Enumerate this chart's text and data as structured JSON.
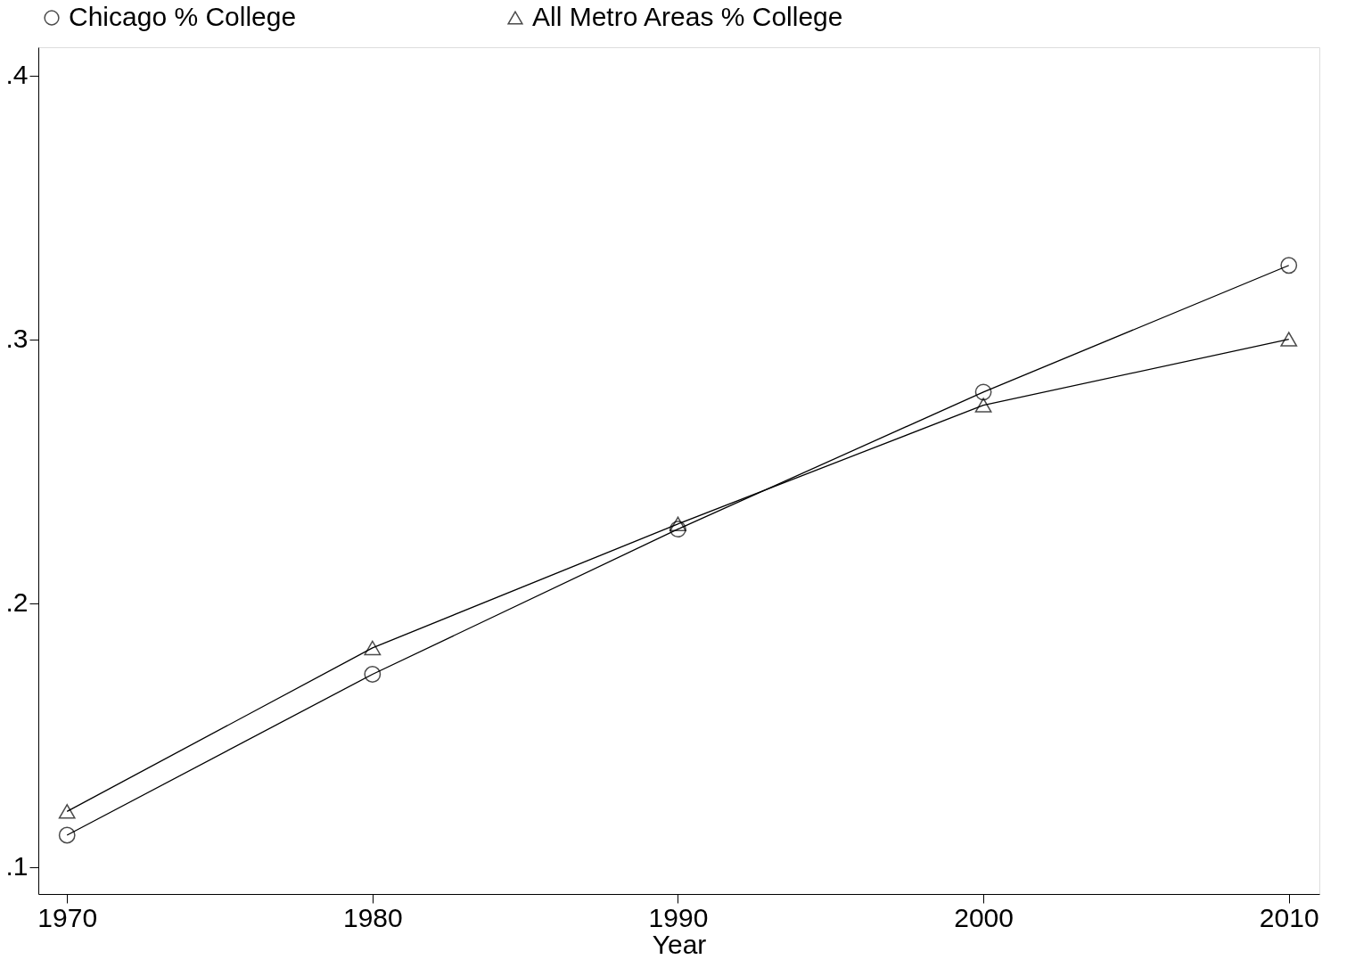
{
  "chart_data": {
    "type": "line",
    "xlabel": "Year",
    "x": [
      1970,
      1980,
      1990,
      2000,
      2010
    ],
    "series": [
      {
        "name": "Chicago % College",
        "color": "#000000",
        "marker": "circle",
        "values": [
          0.112,
          0.173,
          0.228,
          0.28,
          0.328
        ]
      },
      {
        "name": "All Metro Areas % College",
        "color": "#000000",
        "marker": "triangle",
        "values": [
          0.121,
          0.183,
          0.23,
          0.275,
          0.3
        ]
      }
    ],
    "xlim": [
      1969.06,
      2011.0
    ],
    "xticks": [
      1970,
      1980,
      1990,
      2000,
      2010
    ],
    "ylim": [
      0.0897,
      0.4107
    ],
    "yticks": [
      {
        "value": 0.1,
        "label": ".1"
      },
      {
        "value": 0.2,
        "label": ".2"
      },
      {
        "value": 0.3,
        "label": ".3"
      },
      {
        "value": 0.4,
        "label": ".4"
      }
    ],
    "grid": false,
    "legend": "top",
    "line_style": "solid"
  }
}
